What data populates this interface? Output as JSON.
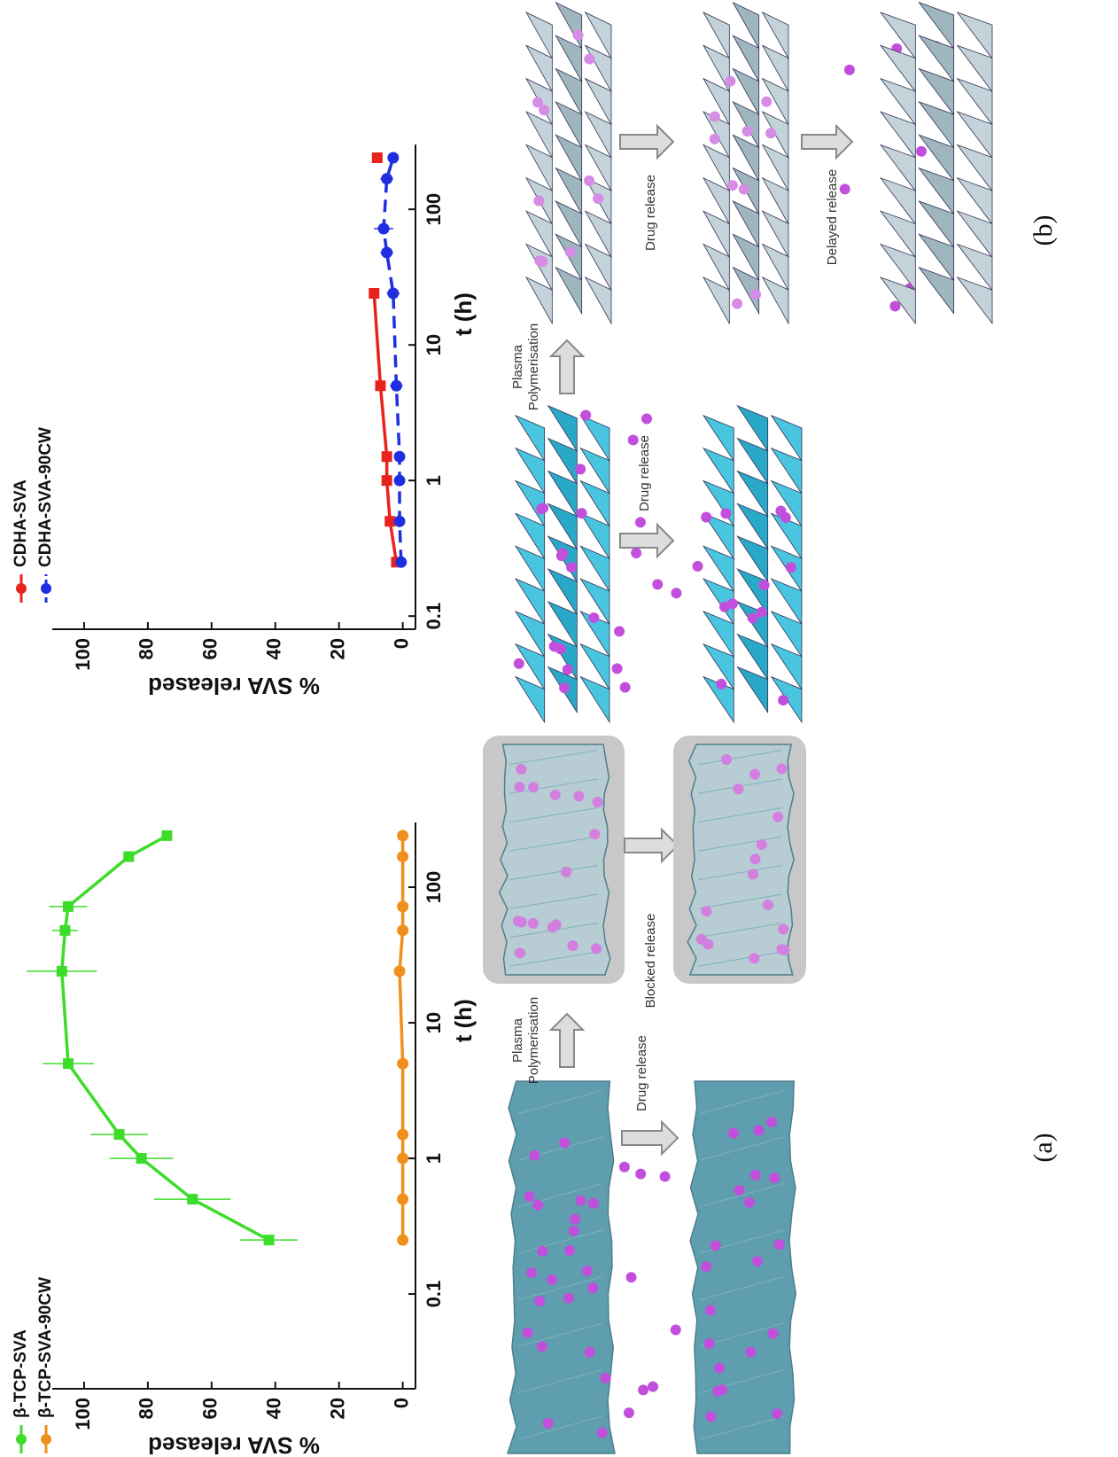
{
  "chart_data": [
    {
      "type": "line",
      "xscale": "log",
      "xlim": [
        0.02,
        300
      ],
      "xticks": [
        0.1,
        1,
        10,
        100
      ],
      "ylim": [
        -4,
        110
      ],
      "yticks": [
        0,
        20,
        40,
        60,
        80,
        100
      ],
      "xlabel": "t (h)",
      "ylabel": "% SVA released",
      "x": [
        0.25,
        0.5,
        1,
        1.5,
        5,
        24,
        48,
        72,
        168,
        240
      ],
      "series": [
        {
          "name": "β-TCP-SVA",
          "color": "#3ddc2a",
          "values": [
            42,
            66,
            82,
            89,
            105,
            107,
            106,
            105,
            86,
            74
          ],
          "errors": [
            9,
            12,
            10,
            9,
            8,
            11,
            4,
            6,
            null,
            null
          ]
        },
        {
          "name": "β-TCP-SVA-90CW",
          "color": "#f0901c",
          "values": [
            0,
            0,
            0,
            0,
            0,
            1,
            0,
            0,
            0,
            0
          ],
          "errors": [
            null,
            null,
            null,
            null,
            null,
            null,
            null,
            null,
            null,
            null
          ]
        }
      ]
    },
    {
      "type": "line",
      "xscale": "log",
      "xlim": [
        0.08,
        300
      ],
      "xticks": [
        0.1,
        1,
        10,
        100
      ],
      "ylim": [
        -4,
        110
      ],
      "yticks": [
        0,
        20,
        40,
        60,
        80,
        100
      ],
      "xlabel": "t (h)",
      "ylabel": "% SVA released",
      "x": [
        0.25,
        0.5,
        1,
        1.5,
        5,
        24,
        48,
        72,
        168,
        240
      ],
      "series": [
        {
          "name": "CDHA-SVA",
          "color": "#e8231e",
          "values": [
            2,
            4,
            5,
            5,
            7,
            9,
            null,
            null,
            null,
            8
          ],
          "errors": [
            null,
            null,
            null,
            null,
            null,
            null,
            null,
            null,
            null,
            null
          ]
        },
        {
          "name": "CDHA-SVA-90CW",
          "color": "#1f2fe0",
          "dash": true,
          "values": [
            0.5,
            1,
            1,
            1,
            2,
            3,
            5,
            6,
            5,
            3
          ],
          "errors": [
            null,
            null,
            null,
            null,
            2,
            2,
            2,
            3,
            2,
            null
          ]
        }
      ]
    }
  ],
  "diagram": {
    "panel_a": {
      "label": "(a)",
      "plasma": [
        "Plasma",
        "Polymerisation"
      ],
      "release": "Drug release",
      "blocked": "Blocked release"
    },
    "panel_b": {
      "label": "(b)",
      "plasma": [
        "Plasma",
        "Polymerisation"
      ],
      "release": "Drug release",
      "release2": "Drug release",
      "delayed": "Delayed release"
    }
  }
}
